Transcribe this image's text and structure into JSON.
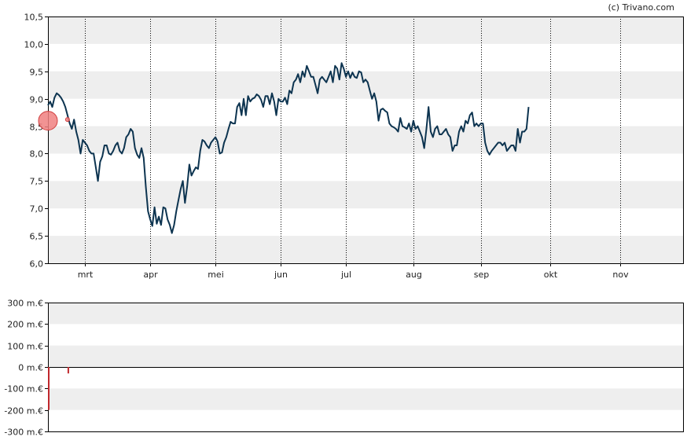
{
  "credit": "(c) Trivano.com",
  "colors": {
    "line": "#0d3450",
    "band": "#eeeeee",
    "volume_bar": "#c0282d",
    "marker_fill": "#f08080",
    "marker_stroke": "#d04040",
    "axis": "#000000",
    "vgrid": "#000000"
  },
  "chart_data": [
    {
      "type": "line",
      "x_tick_labels": [
        "mrt",
        "apr",
        "mei",
        "jun",
        "jul",
        "aug",
        "sep",
        "okt",
        "nov"
      ],
      "y_tick_labels": [
        "6,0",
        "6,5",
        "7,0",
        "7,5",
        "8,0",
        "8,5",
        "9,0",
        "9,5",
        "10,0",
        "10,5"
      ],
      "y_ticks": [
        6.0,
        6.5,
        7.0,
        7.5,
        8.0,
        8.5,
        9.0,
        9.5,
        10.0,
        10.5
      ],
      "ylim": [
        6.0,
        10.5
      ],
      "x_range_days": [
        0,
        292
      ],
      "x_tick_days": [
        17,
        47,
        77,
        107,
        137,
        168,
        199,
        231,
        263
      ],
      "grid": "alternating horizontal bands, dotted vertical month lines",
      "series": [
        {
          "points": [
            [
              0,
              8.88
            ],
            [
              1,
              8.95
            ],
            [
              2,
              8.85
            ],
            [
              3,
              9.02
            ],
            [
              4,
              9.1
            ],
            [
              5,
              9.07
            ],
            [
              6,
              9.02
            ],
            [
              7,
              8.95
            ],
            [
              8,
              8.85
            ],
            [
              9,
              8.7
            ],
            [
              10,
              8.55
            ],
            [
              11,
              8.45
            ],
            [
              12,
              8.62
            ],
            [
              13,
              8.4
            ],
            [
              14,
              8.25
            ],
            [
              15,
              8.0
            ],
            [
              16,
              8.25
            ],
            [
              17,
              8.2
            ],
            [
              18,
              8.15
            ],
            [
              19,
              8.05
            ],
            [
              20,
              8.0
            ],
            [
              21,
              8.0
            ],
            [
              22,
              7.75
            ],
            [
              23,
              7.5
            ],
            [
              24,
              7.85
            ],
            [
              25,
              7.95
            ],
            [
              26,
              8.15
            ],
            [
              27,
              8.15
            ],
            [
              28,
              8.0
            ],
            [
              29,
              7.98
            ],
            [
              30,
              8.05
            ],
            [
              31,
              8.15
            ],
            [
              32,
              8.2
            ],
            [
              33,
              8.05
            ],
            [
              34,
              8.0
            ],
            [
              35,
              8.1
            ],
            [
              36,
              8.3
            ],
            [
              37,
              8.35
            ],
            [
              38,
              8.45
            ],
            [
              39,
              8.4
            ],
            [
              40,
              8.1
            ],
            [
              41,
              7.98
            ],
            [
              42,
              7.92
            ],
            [
              43,
              8.1
            ],
            [
              44,
              7.92
            ],
            [
              45,
              7.4
            ],
            [
              46,
              6.95
            ],
            [
              47,
              6.8
            ],
            [
              48,
              6.68
            ],
            [
              49,
              7.02
            ],
            [
              50,
              6.72
            ],
            [
              51,
              6.85
            ],
            [
              52,
              6.7
            ],
            [
              53,
              7.02
            ],
            [
              54,
              7.0
            ],
            [
              55,
              6.8
            ],
            [
              56,
              6.7
            ],
            [
              57,
              6.55
            ],
            [
              58,
              6.7
            ],
            [
              59,
              6.95
            ],
            [
              60,
              7.15
            ],
            [
              61,
              7.35
            ],
            [
              62,
              7.5
            ],
            [
              63,
              7.1
            ],
            [
              64,
              7.4
            ],
            [
              65,
              7.8
            ],
            [
              66,
              7.6
            ],
            [
              67,
              7.68
            ],
            [
              68,
              7.75
            ],
            [
              69,
              7.72
            ],
            [
              70,
              8.05
            ],
            [
              71,
              8.25
            ],
            [
              72,
              8.22
            ],
            [
              73,
              8.15
            ],
            [
              74,
              8.1
            ],
            [
              75,
              8.2
            ],
            [
              76,
              8.25
            ],
            [
              77,
              8.3
            ],
            [
              78,
              8.22
            ],
            [
              79,
              8.0
            ],
            [
              80,
              8.02
            ],
            [
              81,
              8.2
            ],
            [
              82,
              8.3
            ],
            [
              83,
              8.45
            ],
            [
              84,
              8.58
            ],
            [
              85,
              8.55
            ],
            [
              86,
              8.55
            ],
            [
              87,
              8.85
            ],
            [
              88,
              8.92
            ],
            [
              89,
              8.7
            ],
            [
              90,
              9.0
            ],
            [
              91,
              8.7
            ],
            [
              92,
              9.05
            ],
            [
              93,
              8.95
            ],
            [
              94,
              9.0
            ],
            [
              95,
              9.02
            ],
            [
              96,
              9.08
            ],
            [
              97,
              9.05
            ],
            [
              98,
              8.98
            ],
            [
              99,
              8.85
            ],
            [
              100,
              9.05
            ],
            [
              101,
              9.05
            ],
            [
              102,
              8.9
            ],
            [
              103,
              9.1
            ],
            [
              104,
              8.95
            ],
            [
              105,
              8.7
            ],
            [
              106,
              9.0
            ],
            [
              107,
              8.95
            ],
            [
              108,
              8.95
            ],
            [
              109,
              9.02
            ],
            [
              110,
              8.9
            ],
            [
              111,
              9.15
            ],
            [
              112,
              9.1
            ],
            [
              113,
              9.3
            ],
            [
              114,
              9.35
            ],
            [
              115,
              9.45
            ],
            [
              116,
              9.3
            ],
            [
              117,
              9.5
            ],
            [
              118,
              9.4
            ],
            [
              119,
              9.6
            ],
            [
              120,
              9.5
            ],
            [
              121,
              9.4
            ],
            [
              122,
              9.4
            ],
            [
              123,
              9.25
            ],
            [
              124,
              9.1
            ],
            [
              125,
              9.35
            ],
            [
              126,
              9.4
            ],
            [
              127,
              9.35
            ],
            [
              128,
              9.3
            ],
            [
              129,
              9.4
            ],
            [
              130,
              9.5
            ],
            [
              131,
              9.3
            ],
            [
              132,
              9.6
            ],
            [
              133,
              9.55
            ],
            [
              134,
              9.35
            ],
            [
              135,
              9.65
            ],
            [
              136,
              9.55
            ],
            [
              137,
              9.4
            ],
            [
              138,
              9.5
            ],
            [
              139,
              9.38
            ],
            [
              140,
              9.48
            ],
            [
              141,
              9.4
            ],
            [
              142,
              9.38
            ],
            [
              143,
              9.5
            ],
            [
              144,
              9.48
            ],
            [
              145,
              9.3
            ],
            [
              146,
              9.35
            ],
            [
              147,
              9.3
            ],
            [
              148,
              9.15
            ],
            [
              149,
              9.0
            ],
            [
              150,
              9.1
            ],
            [
              151,
              8.95
            ],
            [
              152,
              8.6
            ],
            [
              153,
              8.8
            ],
            [
              154,
              8.82
            ],
            [
              155,
              8.78
            ],
            [
              156,
              8.75
            ],
            [
              157,
              8.55
            ],
            [
              158,
              8.5
            ],
            [
              159,
              8.48
            ],
            [
              160,
              8.45
            ],
            [
              161,
              8.4
            ],
            [
              162,
              8.65
            ],
            [
              163,
              8.5
            ],
            [
              164,
              8.48
            ],
            [
              165,
              8.45
            ],
            [
              166,
              8.55
            ],
            [
              167,
              8.4
            ],
            [
              168,
              8.6
            ],
            [
              169,
              8.45
            ],
            [
              170,
              8.5
            ],
            [
              171,
              8.4
            ],
            [
              172,
              8.3
            ],
            [
              173,
              8.1
            ],
            [
              174,
              8.45
            ],
            [
              175,
              8.85
            ],
            [
              176,
              8.4
            ],
            [
              177,
              8.3
            ],
            [
              178,
              8.45
            ],
            [
              179,
              8.5
            ],
            [
              180,
              8.35
            ],
            [
              181,
              8.35
            ],
            [
              182,
              8.4
            ],
            [
              183,
              8.45
            ],
            [
              184,
              8.35
            ],
            [
              185,
              8.3
            ],
            [
              186,
              8.05
            ],
            [
              187,
              8.15
            ],
            [
              188,
              8.15
            ],
            [
              189,
              8.4
            ],
            [
              190,
              8.5
            ],
            [
              191,
              8.4
            ],
            [
              192,
              8.6
            ],
            [
              193,
              8.55
            ],
            [
              194,
              8.7
            ],
            [
              195,
              8.75
            ],
            [
              196,
              8.5
            ],
            [
              197,
              8.55
            ],
            [
              198,
              8.5
            ],
            [
              199,
              8.55
            ],
            [
              200,
              8.55
            ],
            [
              201,
              8.2
            ],
            [
              202,
              8.05
            ],
            [
              203,
              7.98
            ],
            [
              204,
              8.05
            ],
            [
              205,
              8.1
            ],
            [
              206,
              8.15
            ],
            [
              207,
              8.2
            ],
            [
              208,
              8.2
            ],
            [
              209,
              8.15
            ],
            [
              210,
              8.2
            ],
            [
              211,
              8.05
            ],
            [
              212,
              8.1
            ],
            [
              213,
              8.15
            ],
            [
              214,
              8.15
            ],
            [
              215,
              8.05
            ],
            [
              216,
              8.45
            ],
            [
              217,
              8.2
            ],
            [
              218,
              8.4
            ],
            [
              219,
              8.4
            ],
            [
              220,
              8.45
            ],
            [
              221,
              8.85
            ]
          ]
        }
      ],
      "trade_markers": [
        {
          "day": 0,
          "value": 8.6,
          "size": "large"
        },
        {
          "day": 9,
          "value": 8.62,
          "size": "small"
        }
      ]
    },
    {
      "type": "bar",
      "y_tick_labels": [
        "-300 m.€",
        "-200 m.€",
        "-100 m.€",
        "0 m.€",
        "100 m.€",
        "200 m.€",
        "300 m.€"
      ],
      "y_ticks": [
        -300,
        -200,
        -100,
        0,
        100,
        200,
        300
      ],
      "ylim": [
        -300,
        300
      ],
      "grid": "alternating horizontal bands",
      "series": [
        {
          "points": [
            [
              0,
              -200
            ],
            [
              9,
              -30
            ]
          ]
        }
      ]
    }
  ]
}
